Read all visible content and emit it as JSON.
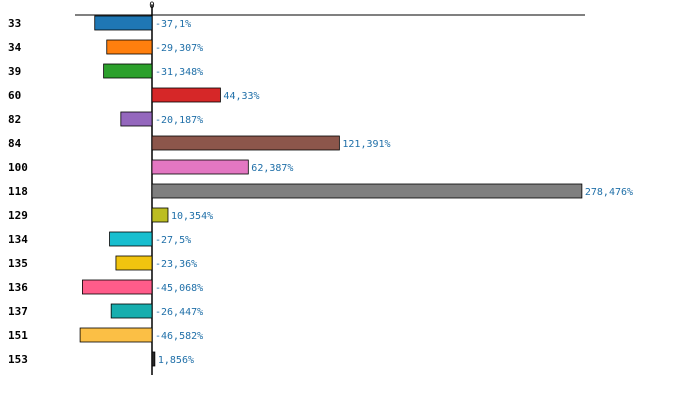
{
  "chart_data": {
    "type": "bar",
    "orientation": "horizontal",
    "categories": [
      "33",
      "34",
      "39",
      "60",
      "82",
      "84",
      "100",
      "118",
      "129",
      "134",
      "135",
      "136",
      "137",
      "151",
      "153"
    ],
    "values": [
      -37.1,
      -29.307,
      -31.348,
      44.33,
      -20.187,
      121.391,
      62.387,
      278.476,
      10.354,
      -27.5,
      -23.36,
      -45.068,
      -26.447,
      -46.582,
      1.856
    ],
    "value_labels": [
      "-37,1%",
      "-29,307%",
      "-31,348%",
      "44,33%",
      "-20,187%",
      "121,391%",
      "62,387%",
      "278,476%",
      "10,354%",
      "-27,5%",
      "-23,36%",
      "-45,068%",
      "-26,447%",
      "-46,582%",
      "1,856%"
    ],
    "colors": [
      "#1f77b4",
      "#ff7f0e",
      "#2ca02c",
      "#d62728",
      "#9467bd",
      "#8c564b",
      "#e377c2",
      "#7f7f7f",
      "#bcbd22",
      "#17becf",
      "#f1c40f",
      "#ff5c8a",
      "#17aeae",
      "#fbbf45",
      "#2a2a2a"
    ],
    "highlight_category": "100",
    "highlight_color": "#e60000",
    "zero_tick_label": "0",
    "xlim": [
      -50,
      280
    ],
    "title": "",
    "xlabel": "",
    "ylabel": "",
    "grid": false,
    "legend": "none"
  }
}
